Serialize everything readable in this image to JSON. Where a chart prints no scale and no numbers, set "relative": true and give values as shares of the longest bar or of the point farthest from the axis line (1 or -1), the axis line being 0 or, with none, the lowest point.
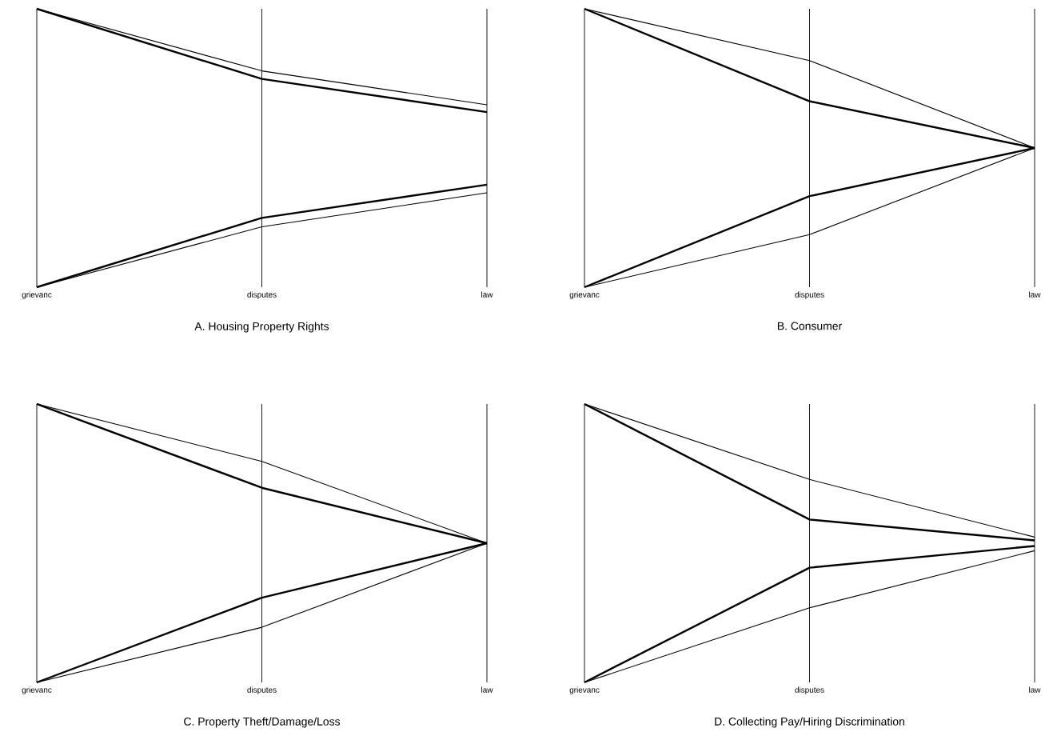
{
  "chart_data": [
    {
      "type": "line",
      "title": "A. Housing Property Rights",
      "categories": [
        "grievanc",
        "disputes",
        "law"
      ],
      "relative": true,
      "grid": "x",
      "series": [
        {
          "color": "#000000",
          "values": [
            1,
            0.748,
            0.629
          ]
        },
        {
          "color": "#000000",
          "values": [
            0,
            0.249,
            0.368
          ]
        },
        {
          "color": "#000000",
          "values": [
            1,
            0.777,
            0.655
          ]
        },
        {
          "color": "#000000",
          "values": [
            0,
            0.217,
            0.339
          ]
        }
      ]
    },
    {
      "type": "line",
      "title": "B. Consumer",
      "categories": [
        "grievanc",
        "disputes",
        "law"
      ],
      "relative": true,
      "grid": "x",
      "series": [
        {
          "color": "#000000",
          "values": [
            1,
            0.668,
            0.5
          ]
        },
        {
          "color": "#000000",
          "values": [
            0,
            0.327,
            0.5
          ]
        },
        {
          "color": "#000000",
          "values": [
            1,
            0.814,
            0.5
          ]
        },
        {
          "color": "#000000",
          "values": [
            0,
            0.189,
            0.5
          ]
        }
      ]
    },
    {
      "type": "line",
      "title": "C. Property Theft/Damage/Loss",
      "categories": [
        "grievanc",
        "disputes",
        "law"
      ],
      "relative": true,
      "grid": "x",
      "series": [
        {
          "color": "#000000",
          "values": [
            1,
            0.699,
            0.5
          ]
        },
        {
          "color": "#000000",
          "values": [
            0,
            0.304,
            0.5
          ]
        },
        {
          "color": "#000000",
          "values": [
            1,
            0.794,
            0.5
          ]
        },
        {
          "color": "#000000",
          "values": [
            0,
            0.198,
            0.5
          ]
        }
      ]
    },
    {
      "type": "line",
      "title": "D. Collecting Pay/Hiring Discrimination",
      "categories": [
        "grievanc",
        "disputes",
        "law"
      ],
      "relative": true,
      "grid": "x",
      "series": [
        {
          "color": "#000000",
          "values": [
            1,
            0.585,
            0.51
          ]
        },
        {
          "color": "#000000",
          "values": [
            0,
            0.412,
            0.49
          ]
        },
        {
          "color": "#000000",
          "values": [
            1,
            0.729,
            0.522
          ]
        },
        {
          "color": "#000000",
          "values": [
            0,
            0.268,
            0.473
          ]
        }
      ]
    }
  ]
}
